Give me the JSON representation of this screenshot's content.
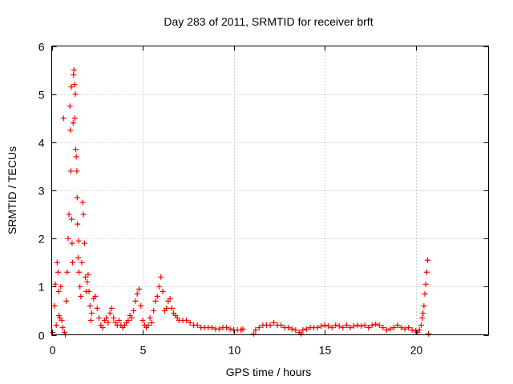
{
  "chart_data": {
    "type": "scatter",
    "title": "Day 283 of 2011, SRMTID for receiver brft",
    "xlabel": "GPS time / hours",
    "ylabel": "SRMTID / TECUs",
    "xlim": [
      0,
      24
    ],
    "ylim": [
      0,
      6
    ],
    "x_ticks": [
      0,
      5,
      10,
      15,
      20
    ],
    "x_tick_labels": [
      "0",
      "5",
      "10",
      "15",
      "20"
    ],
    "y_ticks": [
      0,
      1,
      2,
      3,
      4,
      5,
      6
    ],
    "y_tick_labels": [
      "0",
      "1",
      "2",
      "3",
      "4",
      "5",
      "6"
    ],
    "grid": true,
    "marker": "+",
    "series": [
      {
        "name": "SRMTID",
        "color": "#ff0000",
        "points": [
          [
            0.05,
            0.05
          ],
          [
            0.15,
            0.6
          ],
          [
            0.2,
            1.05
          ],
          [
            0.25,
            0.2
          ],
          [
            0.3,
            1.5
          ],
          [
            0.35,
            1.3
          ],
          [
            0.38,
            0.9
          ],
          [
            0.4,
            0.4
          ],
          [
            0.45,
            0.35
          ],
          [
            0.5,
            1.0
          ],
          [
            0.55,
            0.3
          ],
          [
            0.6,
            0.15
          ],
          [
            0.65,
            4.5
          ],
          [
            0.7,
            0.05
          ],
          [
            0.75,
            0.0
          ],
          [
            0.8,
            0.7
          ],
          [
            0.85,
            1.3
          ],
          [
            0.9,
            2.0
          ],
          [
            0.95,
            2.5
          ],
          [
            1.0,
            4.75
          ],
          [
            1.02,
            4.25
          ],
          [
            1.05,
            3.4
          ],
          [
            1.08,
            5.15
          ],
          [
            1.1,
            2.4
          ],
          [
            1.12,
            1.9
          ],
          [
            1.15,
            1.5
          ],
          [
            1.18,
            4.4
          ],
          [
            1.2,
            5.4
          ],
          [
            1.22,
            5.5
          ],
          [
            1.25,
            5.2
          ],
          [
            1.27,
            4.5
          ],
          [
            1.3,
            5.0
          ],
          [
            1.32,
            3.85
          ],
          [
            1.35,
            3.7
          ],
          [
            1.38,
            3.4
          ],
          [
            1.4,
            2.85
          ],
          [
            1.42,
            2.3
          ],
          [
            1.45,
            1.6
          ],
          [
            1.48,
            1.95
          ],
          [
            1.5,
            1.3
          ],
          [
            1.55,
            1.0
          ],
          [
            1.6,
            0.8
          ],
          [
            1.65,
            1.5
          ],
          [
            1.7,
            2.75
          ],
          [
            1.75,
            2.5
          ],
          [
            1.8,
            1.9
          ],
          [
            1.85,
            1.2
          ],
          [
            1.9,
            0.9
          ],
          [
            1.95,
            1.1
          ],
          [
            2.0,
            1.25
          ],
          [
            2.05,
            0.9
          ],
          [
            2.1,
            0.6
          ],
          [
            2.15,
            0.3
          ],
          [
            2.2,
            0.45
          ],
          [
            2.3,
            0.75
          ],
          [
            2.4,
            0.8
          ],
          [
            2.5,
            0.55
          ],
          [
            2.6,
            0.35
          ],
          [
            2.7,
            0.2
          ],
          [
            2.8,
            0.15
          ],
          [
            2.9,
            0.3
          ],
          [
            3.0,
            0.35
          ],
          [
            3.1,
            0.25
          ],
          [
            3.2,
            0.45
          ],
          [
            3.3,
            0.55
          ],
          [
            3.4,
            0.35
          ],
          [
            3.5,
            0.25
          ],
          [
            3.6,
            0.2
          ],
          [
            3.7,
            0.3
          ],
          [
            3.8,
            0.2
          ],
          [
            3.9,
            0.15
          ],
          [
            4.0,
            0.2
          ],
          [
            4.1,
            0.25
          ],
          [
            4.2,
            0.3
          ],
          [
            4.3,
            0.4
          ],
          [
            4.4,
            0.35
          ],
          [
            4.5,
            0.5
          ],
          [
            4.6,
            0.7
          ],
          [
            4.7,
            0.85
          ],
          [
            4.8,
            0.95
          ],
          [
            4.9,
            0.6
          ],
          [
            5.0,
            0.3
          ],
          [
            5.1,
            0.2
          ],
          [
            5.2,
            0.15
          ],
          [
            5.3,
            0.2
          ],
          [
            5.4,
            0.35
          ],
          [
            5.5,
            0.25
          ],
          [
            5.6,
            0.5
          ],
          [
            5.7,
            0.7
          ],
          [
            5.8,
            0.8
          ],
          [
            5.9,
            1.0
          ],
          [
            6.0,
            1.2
          ],
          [
            6.1,
            0.9
          ],
          [
            6.2,
            0.5
          ],
          [
            6.3,
            0.55
          ],
          [
            6.4,
            0.7
          ],
          [
            6.5,
            0.75
          ],
          [
            6.6,
            0.55
          ],
          [
            6.7,
            0.45
          ],
          [
            6.8,
            0.4
          ],
          [
            6.9,
            0.35
          ],
          [
            7.0,
            0.3
          ],
          [
            7.2,
            0.3
          ],
          [
            7.4,
            0.3
          ],
          [
            7.6,
            0.25
          ],
          [
            7.8,
            0.2
          ],
          [
            8.0,
            0.2
          ],
          [
            8.2,
            0.15
          ],
          [
            8.4,
            0.15
          ],
          [
            8.6,
            0.15
          ],
          [
            8.8,
            0.15
          ],
          [
            9.0,
            0.12
          ],
          [
            9.2,
            0.12
          ],
          [
            9.4,
            0.15
          ],
          [
            9.6,
            0.15
          ],
          [
            9.8,
            0.12
          ],
          [
            10.0,
            0.1
          ],
          [
            10.2,
            0.1
          ],
          [
            10.4,
            0.1
          ],
          [
            10.5,
            0.12
          ],
          [
            11.1,
            0.02
          ],
          [
            11.2,
            0.1
          ],
          [
            11.4,
            0.15
          ],
          [
            11.6,
            0.2
          ],
          [
            11.8,
            0.2
          ],
          [
            12.0,
            0.2
          ],
          [
            12.2,
            0.25
          ],
          [
            12.4,
            0.2
          ],
          [
            12.6,
            0.2
          ],
          [
            12.8,
            0.15
          ],
          [
            13.0,
            0.15
          ],
          [
            13.2,
            0.12
          ],
          [
            13.4,
            0.1
          ],
          [
            13.6,
            0.05
          ],
          [
            13.7,
            0.02
          ],
          [
            13.8,
            0.1
          ],
          [
            14.0,
            0.12
          ],
          [
            14.2,
            0.15
          ],
          [
            14.4,
            0.15
          ],
          [
            14.6,
            0.15
          ],
          [
            14.8,
            0.18
          ],
          [
            15.0,
            0.2
          ],
          [
            15.2,
            0.18
          ],
          [
            15.4,
            0.15
          ],
          [
            15.6,
            0.2
          ],
          [
            15.8,
            0.18
          ],
          [
            16.0,
            0.15
          ],
          [
            16.2,
            0.2
          ],
          [
            16.4,
            0.15
          ],
          [
            16.6,
            0.18
          ],
          [
            16.8,
            0.2
          ],
          [
            17.0,
            0.18
          ],
          [
            17.2,
            0.2
          ],
          [
            17.4,
            0.15
          ],
          [
            17.6,
            0.2
          ],
          [
            17.8,
            0.22
          ],
          [
            18.0,
            0.2
          ],
          [
            18.2,
            0.15
          ],
          [
            18.4,
            0.1
          ],
          [
            18.6,
            0.12
          ],
          [
            18.8,
            0.15
          ],
          [
            19.0,
            0.2
          ],
          [
            19.2,
            0.15
          ],
          [
            19.4,
            0.12
          ],
          [
            19.6,
            0.15
          ],
          [
            19.8,
            0.1
          ],
          [
            20.0,
            0.08
          ],
          [
            20.1,
            0.05
          ],
          [
            20.2,
            0.1
          ],
          [
            20.3,
            0.2
          ],
          [
            20.35,
            0.35
          ],
          [
            20.4,
            0.45
          ],
          [
            20.45,
            0.6
          ],
          [
            20.5,
            0.85
          ],
          [
            20.55,
            1.05
          ],
          [
            20.6,
            1.3
          ],
          [
            20.65,
            1.55
          ],
          [
            20.7,
            0.02
          ]
        ]
      }
    ]
  }
}
